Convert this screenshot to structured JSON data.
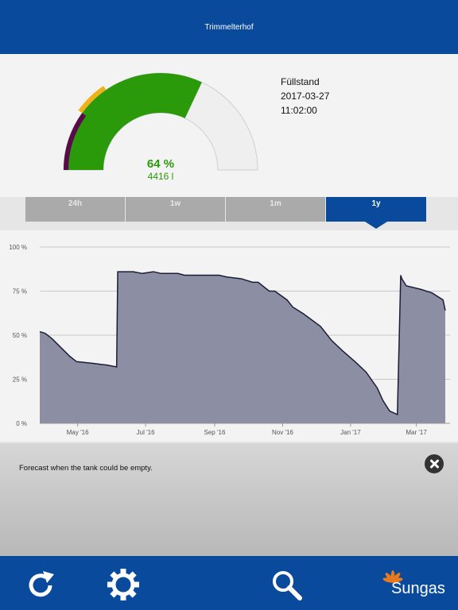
{
  "header": {
    "title": "Trimmelterhof"
  },
  "gauge": {
    "percent_label": "64 %",
    "liters_label": "4416 l",
    "level_fraction": 0.64,
    "colors": {
      "fill": "#2a9a0b",
      "empty": "#efefef",
      "warning": "#f0b21a",
      "critical": "#5a0a4a"
    }
  },
  "info": {
    "label": "Füllstand",
    "date": "2017-03-27",
    "time": "11:02:00"
  },
  "tabs": [
    {
      "label": "24h",
      "active": false
    },
    {
      "label": "1w",
      "active": false
    },
    {
      "label": "1m",
      "active": false
    },
    {
      "label": "1y",
      "active": true
    }
  ],
  "chart_data": {
    "type": "area",
    "y_ticks": [
      "100 %",
      "75 %",
      "50 %",
      "25 %",
      "0 %"
    ],
    "x_ticks": [
      "May '16",
      "Jul '16",
      "Sep '16",
      "Nov '16",
      "Jan '17",
      "Mar '17"
    ],
    "ylim": [
      0,
      100
    ],
    "series": [
      {
        "x": [
          "2016-03-28",
          "2016-04-02",
          "2016-04-08",
          "2016-04-16",
          "2016-04-24",
          "2016-04-30",
          "2016-05-15",
          "2016-05-28",
          "2016-06-05",
          "2016-06-06",
          "2016-06-20",
          "2016-06-28",
          "2016-07-08",
          "2016-07-15",
          "2016-07-30",
          "2016-08-05",
          "2016-08-20",
          "2016-09-05",
          "2016-09-12",
          "2016-09-25",
          "2016-10-05",
          "2016-10-10",
          "2016-10-20",
          "2016-10-25",
          "2016-11-05",
          "2016-11-10",
          "2016-11-20",
          "2016-12-05",
          "2016-12-15",
          "2016-12-25",
          "2017-01-05",
          "2017-01-15",
          "2017-01-25",
          "2017-01-30",
          "2017-02-05",
          "2017-02-12",
          "2017-02-15",
          "2017-02-16",
          "2017-02-20",
          "2017-03-05",
          "2017-03-15",
          "2017-03-25",
          "2017-03-27"
        ],
        "y": [
          52,
          51,
          48,
          43,
          38,
          35,
          34,
          33,
          32,
          86,
          86,
          85,
          86,
          85,
          85,
          84,
          84,
          84,
          83,
          82,
          80,
          80,
          75,
          75,
          70,
          66,
          62,
          55,
          47,
          41,
          35,
          29,
          20,
          13,
          7,
          5,
          84,
          82,
          78,
          76,
          74,
          70,
          64
        ]
      }
    ],
    "colors": {
      "fill": "#8c8ea3",
      "line": "#1a1d35",
      "grid": "#c8c8c8"
    }
  },
  "forecast": {
    "text": "Forecast when the tank could be empty."
  },
  "bottom_bar": {
    "icons": [
      "refresh-icon",
      "gear-icon",
      "search-icon"
    ],
    "logo": "Sungas"
  }
}
